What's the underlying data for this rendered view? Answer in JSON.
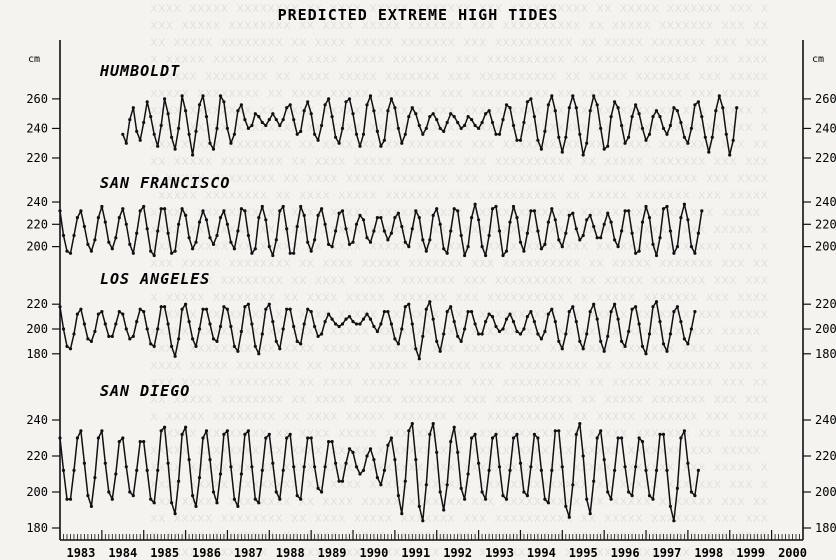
{
  "chart_data": {
    "type": "line",
    "title": "PREDICTED EXTREME HIGH TIDES",
    "unit_label": "cm",
    "x_ticks": [
      "1983",
      "1984",
      "1985",
      "1986",
      "1987",
      "1988",
      "1989",
      "1990",
      "1991",
      "1992",
      "1993",
      "1994",
      "1995",
      "1996",
      "1997",
      "1998",
      "1999",
      "2000"
    ],
    "x_range": [
      1983,
      2000.75
    ],
    "grid": false,
    "panels": [
      {
        "label": "HUMBOLDT",
        "ylim": [
          220,
          266
        ],
        "yticks": [
          220,
          240,
          260
        ],
        "start": 1984.5,
        "values": [
          236,
          230,
          246,
          254,
          238,
          232,
          244,
          258,
          248,
          236,
          228,
          242,
          260,
          250,
          234,
          226,
          240,
          262,
          252,
          236,
          222,
          238,
          256,
          262,
          248,
          230,
          226,
          240,
          262,
          258,
          240,
          230,
          236,
          252,
          256,
          246,
          240,
          242,
          250,
          248,
          244,
          242,
          246,
          250,
          246,
          242,
          246,
          254,
          256,
          246,
          236,
          238,
          252,
          258,
          250,
          236,
          232,
          242,
          256,
          260,
          248,
          234,
          230,
          240,
          258,
          260,
          250,
          236,
          228,
          236,
          256,
          262,
          252,
          238,
          228,
          232,
          252,
          260,
          254,
          240,
          230,
          236,
          248,
          254,
          250,
          242,
          236,
          240,
          248,
          250,
          246,
          240,
          238,
          244,
          250,
          248,
          244,
          240,
          242,
          248,
          246,
          242,
          240,
          244,
          250,
          252,
          244,
          236,
          236,
          246,
          256,
          254,
          242,
          232,
          232,
          244,
          258,
          260,
          248,
          232,
          226,
          238,
          256,
          262,
          252,
          234,
          224,
          234,
          254,
          262,
          254,
          236,
          222,
          230,
          252,
          262,
          256,
          240,
          226,
          228,
          248,
          258,
          254,
          242,
          230,
          234,
          248,
          256,
          250,
          240,
          232,
          236,
          248,
          252,
          248,
          240,
          236,
          242,
          254,
          252,
          244,
          234,
          230,
          240,
          256,
          258,
          248,
          234,
          224,
          234,
          252,
          262,
          254,
          236,
          222,
          232,
          254
        ]
      },
      {
        "label": "SAN FRANCISCO",
        "ylim": [
          188,
          240
        ],
        "yticks": [
          200,
          220,
          240
        ],
        "start": 1983.0,
        "values": [
          232,
          210,
          196,
          194,
          210,
          226,
          232,
          218,
          202,
          196,
          206,
          226,
          236,
          222,
          204,
          198,
          208,
          226,
          234,
          220,
          202,
          194,
          212,
          232,
          236,
          216,
          196,
          192,
          214,
          234,
          234,
          212,
          194,
          196,
          220,
          234,
          228,
          208,
          198,
          204,
          222,
          232,
          224,
          208,
          202,
          210,
          226,
          232,
          220,
          204,
          198,
          214,
          234,
          232,
          210,
          194,
          198,
          226,
          236,
          224,
          200,
          192,
          206,
          232,
          236,
          216,
          194,
          194,
          218,
          236,
          228,
          204,
          196,
          206,
          228,
          234,
          220,
          202,
          200,
          214,
          230,
          232,
          216,
          202,
          204,
          220,
          228,
          224,
          208,
          204,
          214,
          226,
          226,
          214,
          206,
          212,
          226,
          230,
          218,
          204,
          200,
          216,
          232,
          226,
          206,
          196,
          206,
          228,
          234,
          220,
          198,
          194,
          214,
          234,
          232,
          210,
          192,
          200,
          226,
          238,
          224,
          200,
          192,
          210,
          234,
          236,
          214,
          192,
          196,
          222,
          236,
          226,
          204,
          196,
          212,
          232,
          232,
          214,
          198,
          202,
          222,
          234,
          224,
          206,
          200,
          212,
          228,
          230,
          216,
          206,
          210,
          224,
          228,
          218,
          208,
          208,
          220,
          230,
          222,
          206,
          200,
          214,
          232,
          232,
          212,
          194,
          196,
          222,
          236,
          226,
          202,
          192,
          208,
          234,
          236,
          214,
          194,
          200,
          226,
          238,
          224,
          200,
          194,
          212,
          232
        ]
      },
      {
        "label": "LOS ANGELES",
        "ylim": [
          175,
          225
        ],
        "yticks": [
          180,
          200,
          220
        ],
        "start": 1983.0,
        "values": [
          218,
          200,
          186,
          184,
          196,
          212,
          216,
          204,
          192,
          190,
          198,
          212,
          214,
          204,
          194,
          194,
          204,
          214,
          212,
          200,
          192,
          194,
          206,
          216,
          214,
          200,
          188,
          186,
          200,
          218,
          218,
          204,
          186,
          178,
          192,
          216,
          220,
          206,
          192,
          186,
          200,
          216,
          216,
          204,
          192,
          190,
          202,
          218,
          216,
          202,
          186,
          182,
          198,
          218,
          220,
          204,
          186,
          180,
          196,
          216,
          220,
          206,
          190,
          184,
          200,
          216,
          216,
          202,
          190,
          188,
          204,
          216,
          214,
          202,
          194,
          196,
          206,
          212,
          208,
          204,
          202,
          204,
          208,
          210,
          206,
          204,
          204,
          208,
          212,
          208,
          202,
          198,
          204,
          214,
          214,
          204,
          192,
          188,
          200,
          218,
          220,
          204,
          184,
          176,
          194,
          216,
          222,
          208,
          190,
          182,
          196,
          214,
          218,
          206,
          194,
          190,
          200,
          214,
          214,
          204,
          196,
          196,
          206,
          212,
          210,
          202,
          198,
          200,
          208,
          212,
          206,
          198,
          196,
          200,
          210,
          214,
          206,
          196,
          192,
          198,
          212,
          216,
          206,
          190,
          184,
          196,
          214,
          218,
          206,
          190,
          184,
          196,
          214,
          220,
          208,
          190,
          182,
          194,
          214,
          220,
          208,
          190,
          186,
          198,
          216,
          218,
          204,
          186,
          180,
          196,
          218,
          222,
          206,
          188,
          182,
          196,
          214,
          218,
          206,
          192,
          188,
          200,
          214
        ]
      },
      {
        "label": "SAN DIEGO",
        "ylim": [
          180,
          240
        ],
        "yticks": [
          180,
          200,
          220,
          240
        ],
        "start": 1983.0,
        "values": [
          230,
          212,
          196,
          196,
          212,
          230,
          234,
          216,
          198,
          192,
          208,
          230,
          234,
          216,
          200,
          196,
          210,
          228,
          230,
          214,
          200,
          198,
          212,
          228,
          228,
          212,
          196,
          194,
          212,
          234,
          236,
          216,
          194,
          188,
          206,
          232,
          236,
          218,
          198,
          192,
          208,
          230,
          234,
          218,
          200,
          194,
          210,
          232,
          234,
          214,
          196,
          192,
          210,
          232,
          234,
          214,
          196,
          194,
          212,
          230,
          232,
          216,
          200,
          196,
          212,
          230,
          232,
          214,
          198,
          196,
          214,
          230,
          230,
          214,
          202,
          200,
          214,
          228,
          228,
          216,
          206,
          206,
          216,
          224,
          222,
          214,
          210,
          212,
          220,
          224,
          218,
          208,
          204,
          212,
          226,
          230,
          218,
          198,
          188,
          206,
          234,
          238,
          218,
          192,
          184,
          204,
          232,
          238,
          222,
          200,
          190,
          204,
          228,
          236,
          222,
          202,
          196,
          210,
          230,
          232,
          216,
          200,
          196,
          212,
          230,
          232,
          214,
          198,
          196,
          212,
          230,
          232,
          216,
          200,
          198,
          214,
          232,
          230,
          212,
          196,
          194,
          212,
          234,
          234,
          214,
          192,
          186,
          204,
          232,
          238,
          220,
          196,
          188,
          206,
          230,
          234,
          218,
          200,
          196,
          212,
          230,
          230,
          214,
          200,
          198,
          214,
          230,
          228,
          212,
          198,
          196,
          212,
          232,
          232,
          212,
          192,
          184,
          202,
          230,
          234,
          216,
          200,
          198,
          212
        ]
      }
    ]
  }
}
